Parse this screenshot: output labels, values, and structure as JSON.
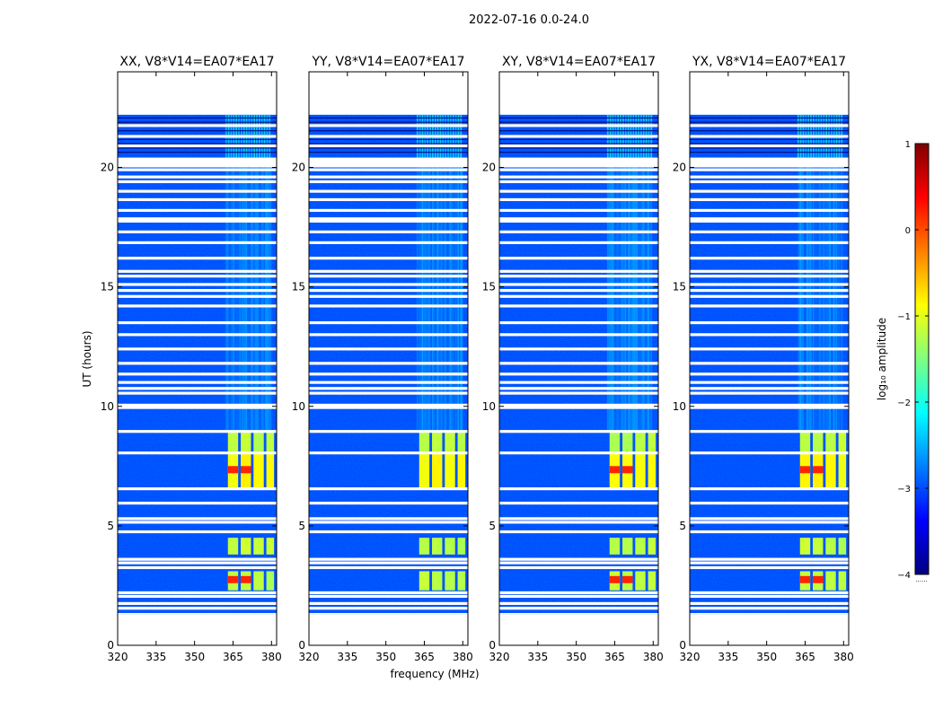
{
  "chart_data": {
    "type": "heatmap",
    "suptitle": "2022-07-16 0.0-24.0",
    "xlabel": "frequency (MHz)",
    "ylabel": "UT (hours)",
    "xlim": [
      320,
      382
    ],
    "ylim": [
      0,
      24
    ],
    "x_ticks": [
      "320",
      "335",
      "350",
      "365",
      "380"
    ],
    "x_tick_values": [
      320,
      335,
      350,
      365,
      380
    ],
    "y_ticks": [
      "0",
      "5",
      "10",
      "15",
      "20"
    ],
    "y_tick_values": [
      0,
      5,
      10,
      15,
      20
    ],
    "panels": [
      {
        "title": "XX, V8*V14=EA07*EA17"
      },
      {
        "title": "YY, V8*V14=EA07*EA17"
      },
      {
        "title": "XY, V8*V14=EA07*EA17"
      },
      {
        "title": "YX, V8*V14=EA07*EA17"
      }
    ],
    "data_time_range_hours": [
      1.3,
      22.2
    ],
    "data_freq_range_mhz": [
      320,
      382
    ],
    "rfi_band_mhz": [
      362,
      380
    ],
    "bright_channels_mhz": [
      [
        363,
        367
      ],
      [
        368,
        372
      ],
      [
        373,
        377
      ],
      [
        378,
        381
      ]
    ],
    "strong_rfi_epochs_hours": [
      [
        2.3,
        3.1
      ],
      [
        3.8,
        4.5
      ],
      [
        6.6,
        8.0
      ],
      [
        8.1,
        8.9
      ]
    ],
    "colorbar": {
      "label": "log₁₀ amplitude",
      "min": -4,
      "max": 1,
      "ticks": [
        "1",
        "0",
        "−1",
        "−2",
        "−3",
        "−4"
      ],
      "tick_values": [
        1,
        0,
        -1,
        -2,
        -3,
        -4
      ],
      "colormap": "jet",
      "colors": [
        "#00007f",
        "#0000ff",
        "#007fff",
        "#00ffff",
        "#7fff7f",
        "#ffff00",
        "#ff7f00",
        "#ff0000",
        "#7f0000"
      ],
      "footer": "......"
    }
  }
}
